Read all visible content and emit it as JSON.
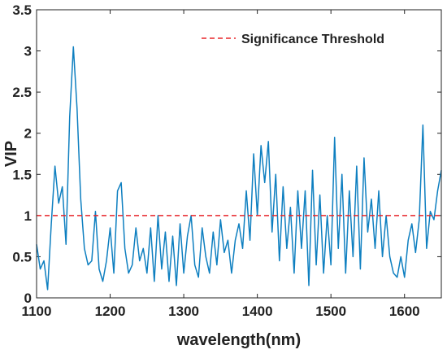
{
  "chart_data": {
    "type": "line",
    "xlabel": "wavelength(nm)",
    "ylabel": "VIP",
    "xlim": [
      1100,
      1650
    ],
    "ylim": [
      0,
      3.5
    ],
    "xticks": [
      1100,
      1200,
      1300,
      1400,
      1500,
      1600
    ],
    "yticks": [
      0,
      0.5,
      1,
      1.5,
      2,
      2.5,
      3,
      3.5
    ],
    "x": [
      1100,
      1105,
      1110,
      1115,
      1120,
      1125,
      1130,
      1135,
      1140,
      1145,
      1150,
      1155,
      1160,
      1165,
      1170,
      1175,
      1180,
      1185,
      1190,
      1195,
      1200,
      1205,
      1210,
      1215,
      1220,
      1225,
      1230,
      1235,
      1240,
      1245,
      1250,
      1255,
      1260,
      1265,
      1270,
      1275,
      1280,
      1285,
      1290,
      1295,
      1300,
      1305,
      1310,
      1315,
      1320,
      1325,
      1330,
      1335,
      1340,
      1345,
      1350,
      1355,
      1360,
      1365,
      1370,
      1375,
      1380,
      1385,
      1390,
      1395,
      1400,
      1405,
      1410,
      1415,
      1420,
      1425,
      1430,
      1435,
      1440,
      1445,
      1450,
      1455,
      1460,
      1465,
      1470,
      1475,
      1480,
      1485,
      1490,
      1495,
      1500,
      1505,
      1510,
      1515,
      1520,
      1525,
      1530,
      1535,
      1540,
      1545,
      1550,
      1555,
      1560,
      1565,
      1570,
      1575,
      1580,
      1585,
      1590,
      1595,
      1600,
      1605,
      1610,
      1615,
      1620,
      1625,
      1630,
      1635,
      1640,
      1645,
      1650
    ],
    "series": [
      {
        "color": "#0e7fc0",
        "values": [
          0.65,
          0.35,
          0.45,
          0.1,
          0.9,
          1.6,
          1.15,
          1.35,
          0.65,
          2.2,
          3.05,
          2.3,
          1.2,
          0.6,
          0.4,
          0.45,
          1.05,
          0.35,
          0.2,
          0.45,
          0.85,
          0.3,
          1.3,
          1.4,
          0.6,
          0.3,
          0.4,
          0.85,
          0.45,
          0.6,
          0.3,
          0.85,
          0.2,
          1.0,
          0.35,
          0.8,
          0.2,
          0.75,
          0.15,
          0.9,
          0.3,
          0.75,
          1.0,
          0.4,
          0.25,
          0.85,
          0.5,
          0.3,
          0.8,
          0.4,
          0.95,
          0.55,
          0.7,
          0.3,
          0.7,
          0.9,
          0.6,
          1.3,
          0.7,
          1.75,
          1.0,
          1.85,
          1.4,
          1.9,
          0.8,
          1.5,
          0.45,
          1.35,
          0.6,
          1.1,
          0.3,
          1.3,
          0.6,
          1.3,
          0.15,
          1.55,
          0.4,
          1.25,
          0.3,
          1.0,
          0.4,
          1.95,
          0.6,
          1.5,
          0.3,
          1.3,
          0.5,
          1.6,
          0.35,
          1.7,
          0.8,
          1.2,
          0.6,
          1.3,
          0.5,
          1.0,
          0.5,
          0.3,
          0.25,
          0.5,
          0.25,
          0.7,
          0.9,
          0.55,
          0.95,
          2.1,
          0.6,
          1.05,
          0.95,
          1.3,
          1.55
        ]
      }
    ],
    "threshold": {
      "name": "Significance Threshold",
      "value": 1,
      "color": "#e8262a"
    }
  }
}
